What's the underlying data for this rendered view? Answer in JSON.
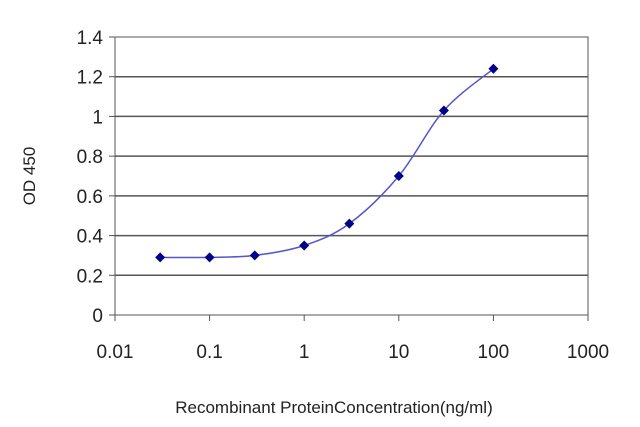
{
  "chart_data": {
    "type": "line",
    "title": "",
    "xlabel": "Recombinant ProteinConcentration(ng/ml)",
    "ylabel": "OD 450",
    "x_scale": "log",
    "xlim": [
      0.01,
      1000
    ],
    "ylim": [
      0,
      1.4
    ],
    "grid": "horizontal",
    "legend": "none",
    "x_ticks": [
      "0.01",
      "0.1",
      "1",
      "10",
      "100",
      "1000"
    ],
    "y_ticks": [
      "0",
      "0.2",
      "0.4",
      "0.6",
      "0.8",
      "1",
      "1.2",
      "1.4"
    ],
    "series": [
      {
        "x": [
          0.03,
          0.1,
          0.3,
          1,
          3,
          10,
          30,
          100
        ],
        "y": [
          0.29,
          0.29,
          0.3,
          0.35,
          0.46,
          0.7,
          1.03,
          1.24
        ],
        "line_color": "#5555cc",
        "marker_color": "#000088"
      }
    ]
  }
}
